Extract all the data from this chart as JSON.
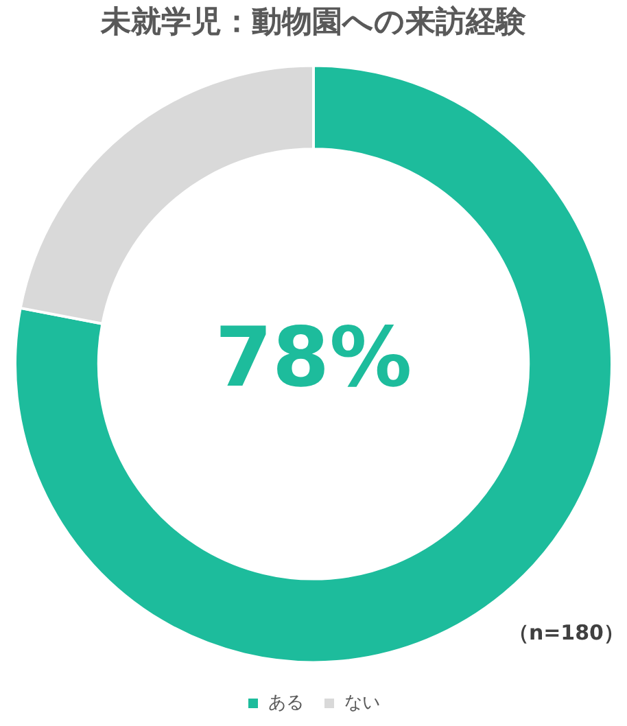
{
  "chart_data": {
    "type": "donut",
    "title": "未就学児：動物園への来訪経験",
    "categories": [
      "ある",
      "ない"
    ],
    "values": [
      78,
      22
    ],
    "colors": [
      "#1dbc9c",
      "#d9d9d9"
    ],
    "legend": "bottom",
    "annotations": [
      "78%",
      "（n=180）"
    ]
  }
}
